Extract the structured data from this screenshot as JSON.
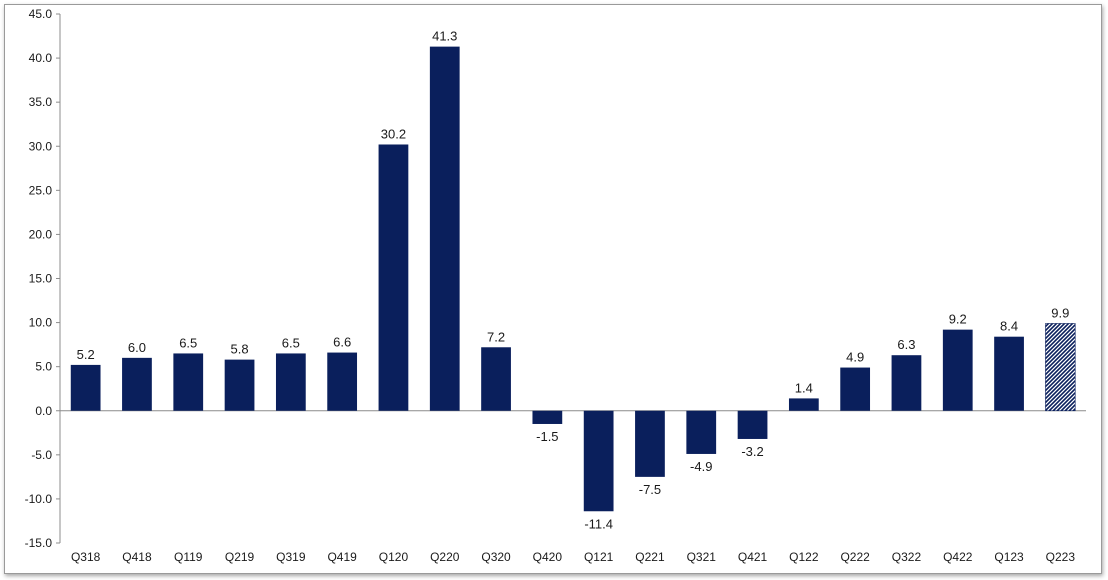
{
  "chart_data": {
    "type": "bar",
    "title": "",
    "xlabel": "",
    "ylabel": "",
    "ylim": [
      -15.0,
      45.0
    ],
    "ytick_step": 5.0,
    "y_tick_labels": [
      "-15.0",
      "-10.0",
      "-5.0",
      "0.0",
      "5.0",
      "10.0",
      "15.0",
      "20.0",
      "25.0",
      "30.0",
      "35.0",
      "40.0",
      "45.0"
    ],
    "grid": false,
    "legend": "none",
    "categories": [
      "Q318",
      "Q418",
      "Q119",
      "Q219",
      "Q319",
      "Q419",
      "Q120",
      "Q220",
      "Q320",
      "Q420",
      "Q121",
      "Q221",
      "Q321",
      "Q421",
      "Q122",
      "Q222",
      "Q322",
      "Q422",
      "Q123",
      "Q223"
    ],
    "values": [
      5.2,
      6.0,
      6.5,
      5.8,
      6.5,
      6.6,
      30.2,
      41.3,
      7.2,
      -1.5,
      -11.4,
      -7.5,
      -4.9,
      -3.2,
      1.4,
      4.9,
      6.3,
      9.2,
      8.4,
      9.9
    ],
    "data_labels": [
      "5.2",
      "6.0",
      "6.5",
      "5.8",
      "6.5",
      "6.6",
      "30.2",
      "41.3",
      "7.2",
      "-1.5",
      "-11.4",
      "-7.5",
      "-4.9",
      "-3.2",
      "1.4",
      "4.9",
      "6.3",
      "9.2",
      "8.4",
      "9.9"
    ],
    "hatched_categories": [
      "Q223"
    ],
    "colors": {
      "bar": "#0a1f5c",
      "axis": "#8c8c8c",
      "text": "#1a1a1a"
    }
  }
}
